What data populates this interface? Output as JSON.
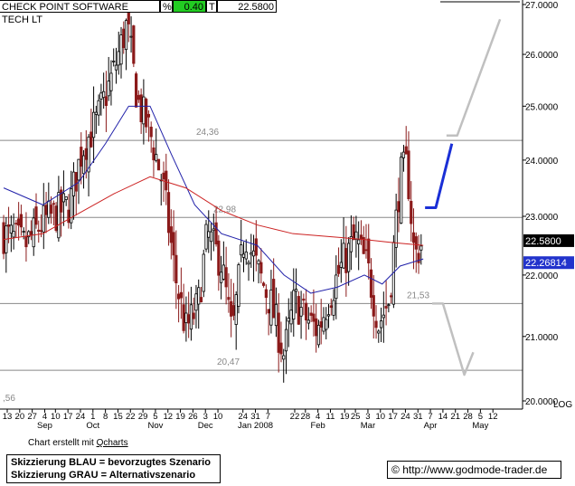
{
  "header": {
    "title": "CHECK POINT SOFTWARE TECH LT",
    "pct_symbol": "%",
    "change": "0.40",
    "t_symbol": "T",
    "price": "22.5800"
  },
  "footer": {
    "credit_prefix": "Chart erstellt mit ",
    "credit_link": "Qcharts",
    "legend_line1": "Skizzierung BLAU = bevorzugtes Szenario",
    "legend_line2": "Skizzierung GRAU = Alternativszenario",
    "url": "http://www.godmode-trader.de",
    "copyright": "©"
  },
  "colors": {
    "candle_up": "#000000",
    "candle_down": "#8b1a1a",
    "ma_blue": "#2222aa",
    "ma_red": "#cc2222",
    "scenario_blue": "#1a2fd6",
    "scenario_grey": "#c0c0c0",
    "level_line": "#888888",
    "change_green": "#22cc22",
    "last_price_bg": "#000000",
    "ma_price_bg": "#2233cc"
  },
  "chart_data": {
    "type": "candlestick",
    "y_scale": "log",
    "y_axis_label": "LOG",
    "ylim": [
      19.9,
      27.1
    ],
    "y_ticks": [
      "27.0000",
      "26.0000",
      "25.0000",
      "24.0000",
      "23.0000",
      "22.0000",
      "21.0000",
      "20.0000"
    ],
    "y_tick_values": [
      27,
      26,
      25,
      24,
      23,
      22,
      21,
      20
    ],
    "x_tick_labels": [
      "13",
      "20",
      "27",
      "4",
      "10",
      "17",
      "24",
      "1",
      "8",
      "15",
      "22",
      "29",
      "5",
      "12",
      "19",
      "26",
      "3",
      "10",
      "24",
      "31",
      "7",
      "22",
      "28",
      "4",
      "11",
      "19",
      "25",
      "3",
      "10",
      "17",
      "24",
      "31",
      "7",
      "14",
      "21",
      "28",
      "5",
      "12"
    ],
    "x_tick_days": [
      0,
      7,
      14,
      21,
      27,
      34,
      41,
      48,
      55,
      62,
      69,
      76,
      83,
      90,
      97,
      104,
      111,
      118,
      132,
      139,
      146,
      161,
      167,
      174,
      181,
      189,
      195,
      202,
      209,
      216,
      223,
      230,
      237,
      244,
      251,
      258,
      265,
      272
    ],
    "month_labels": [
      "Sep",
      "Oct",
      "Nov",
      "Dec",
      "Jan 2008",
      "Feb",
      "Mar",
      "Apr",
      "May"
    ],
    "month_label_days": [
      21,
      48,
      83,
      111,
      139,
      174,
      202,
      237,
      265
    ],
    "level_lines": [
      {
        "value": 24.36,
        "label": "24,36"
      },
      {
        "value": 22.98,
        "label": "22,98"
      },
      {
        "value": 21.53,
        "label": "21,53"
      },
      {
        "value": 20.47,
        "label": "20,47"
      }
    ],
    "last_price": 22.58,
    "last_price_label": "22.5800",
    "ma_price": 22.26814,
    "ma_price_label": "22.26814",
    "corner_label": ",56",
    "candle_window": {
      "start_day": -2,
      "end_day": 233,
      "step": 1.4,
      "seed": 7
    },
    "close_path": [
      {
        "day": -2,
        "value": 22.7
      },
      {
        "day": 10,
        "value": 22.5
      },
      {
        "day": 20,
        "value": 22.9
      },
      {
        "day": 35,
        "value": 23.2
      },
      {
        "day": 42,
        "value": 24.2
      },
      {
        "day": 50,
        "value": 24.7
      },
      {
        "day": 60,
        "value": 25.7
      },
      {
        "day": 67,
        "value": 26.6
      },
      {
        "day": 73,
        "value": 25.1
      },
      {
        "day": 80,
        "value": 24.5
      },
      {
        "day": 87,
        "value": 23.6
      },
      {
        "day": 94,
        "value": 22.0
      },
      {
        "day": 100,
        "value": 21.1
      },
      {
        "day": 107,
        "value": 21.5
      },
      {
        "day": 112,
        "value": 22.7
      },
      {
        "day": 120,
        "value": 22.2
      },
      {
        "day": 126,
        "value": 21.0
      },
      {
        "day": 133,
        "value": 22.7
      },
      {
        "day": 140,
        "value": 22.1
      },
      {
        "day": 148,
        "value": 21.5
      },
      {
        "day": 155,
        "value": 20.7
      },
      {
        "day": 161,
        "value": 21.6
      },
      {
        "day": 167,
        "value": 21.3
      },
      {
        "day": 174,
        "value": 21.1
      },
      {
        "day": 181,
        "value": 21.7
      },
      {
        "day": 188,
        "value": 22.2
      },
      {
        "day": 195,
        "value": 22.6
      },
      {
        "day": 202,
        "value": 22.1
      },
      {
        "day": 208,
        "value": 21.2
      },
      {
        "day": 214,
        "value": 21.6
      },
      {
        "day": 220,
        "value": 23.7
      },
      {
        "day": 224,
        "value": 23.9
      },
      {
        "day": 228,
        "value": 22.3
      },
      {
        "day": 233,
        "value": 22.58
      }
    ],
    "series": [
      {
        "name": "",
        "style": "blue-ma",
        "points": [
          {
            "day": -2,
            "value": 23.5
          },
          {
            "day": 20,
            "value": 23.2
          },
          {
            "day": 40,
            "value": 23.6
          },
          {
            "day": 55,
            "value": 24.3
          },
          {
            "day": 68,
            "value": 25.0
          },
          {
            "day": 80,
            "value": 25.0
          },
          {
            "day": 92,
            "value": 24.1
          },
          {
            "day": 105,
            "value": 23.2
          },
          {
            "day": 120,
            "value": 22.7
          },
          {
            "day": 140,
            "value": 22.5
          },
          {
            "day": 155,
            "value": 22.0
          },
          {
            "day": 170,
            "value": 21.7
          },
          {
            "day": 185,
            "value": 21.8
          },
          {
            "day": 200,
            "value": 22.0
          },
          {
            "day": 210,
            "value": 21.85
          },
          {
            "day": 220,
            "value": 22.15
          },
          {
            "day": 233,
            "value": 22.27
          }
        ]
      },
      {
        "name": "",
        "style": "red-ma",
        "points": [
          {
            "day": -2,
            "value": 22.6
          },
          {
            "day": 20,
            "value": 22.7
          },
          {
            "day": 40,
            "value": 23.05
          },
          {
            "day": 60,
            "value": 23.4
          },
          {
            "day": 80,
            "value": 23.7
          },
          {
            "day": 100,
            "value": 23.5
          },
          {
            "day": 120,
            "value": 23.1
          },
          {
            "day": 140,
            "value": 22.85
          },
          {
            "day": 160,
            "value": 22.7
          },
          {
            "day": 180,
            "value": 22.65
          },
          {
            "day": 200,
            "value": 22.6
          },
          {
            "day": 215,
            "value": 22.55
          },
          {
            "day": 233,
            "value": 22.5
          }
        ]
      }
    ],
    "scenarios": [
      {
        "name": "blue",
        "points": [
          {
            "day": 234,
            "value": 23.15
          },
          {
            "day": 240,
            "value": 23.15
          },
          {
            "day": 249,
            "value": 24.3
          }
        ]
      },
      {
        "name": "grey-up",
        "points": [
          {
            "day": 246,
            "value": 24.45
          },
          {
            "day": 252,
            "value": 24.45
          },
          {
            "day": 276,
            "value": 26.7
          }
        ]
      },
      {
        "name": "grey-down",
        "points": [
          {
            "day": 238,
            "value": 21.53
          },
          {
            "day": 244,
            "value": 21.53
          },
          {
            "day": 256,
            "value": 20.4
          },
          {
            "day": 261,
            "value": 20.75
          }
        ]
      }
    ]
  }
}
